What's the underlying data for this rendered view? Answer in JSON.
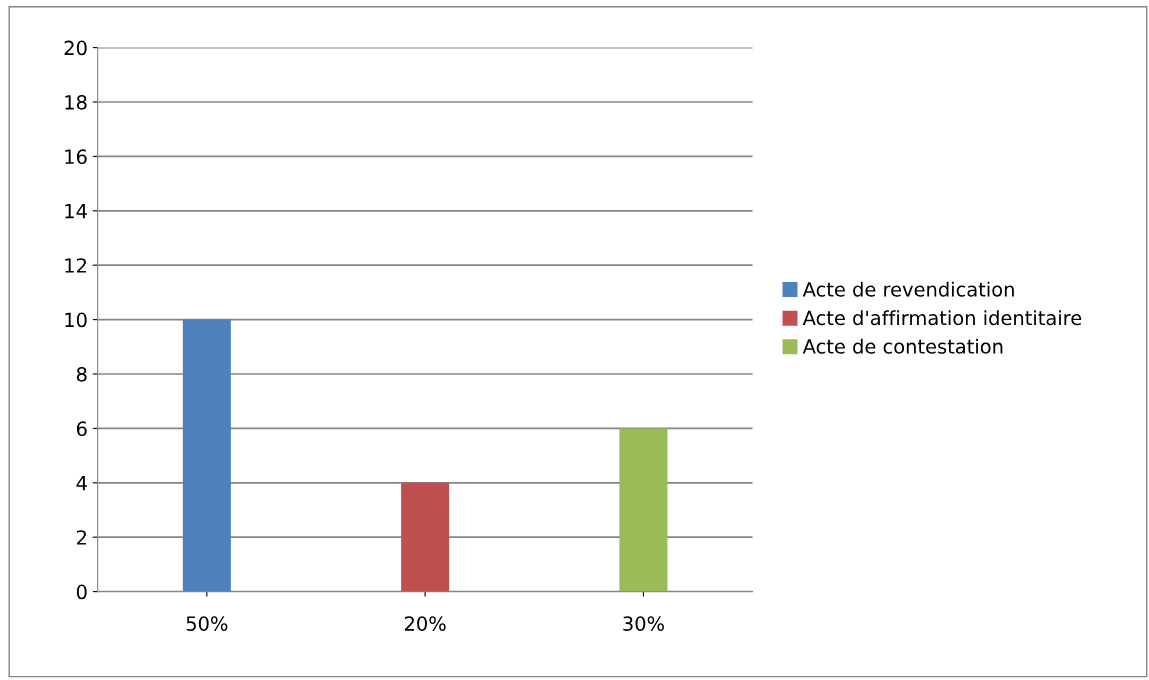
{
  "chart_data": {
    "type": "bar",
    "categories": [
      "50%",
      "20%",
      "30%"
    ],
    "series": [
      {
        "name": "Acte de revendication",
        "color": "#4f81bd",
        "values": [
          10,
          null,
          null
        ]
      },
      {
        "name": "Acte d'affirmation identitaire",
        "color": "#c0504d",
        "values": [
          null,
          4,
          null
        ]
      },
      {
        "name": "Acte de contestation",
        "color": "#9bbb59",
        "values": [
          null,
          null,
          6
        ]
      }
    ],
    "ylim": [
      0,
      20
    ],
    "yticks": [
      0,
      2,
      4,
      6,
      8,
      10,
      12,
      14,
      16,
      18,
      20
    ],
    "grid": "y",
    "legend": "right"
  }
}
